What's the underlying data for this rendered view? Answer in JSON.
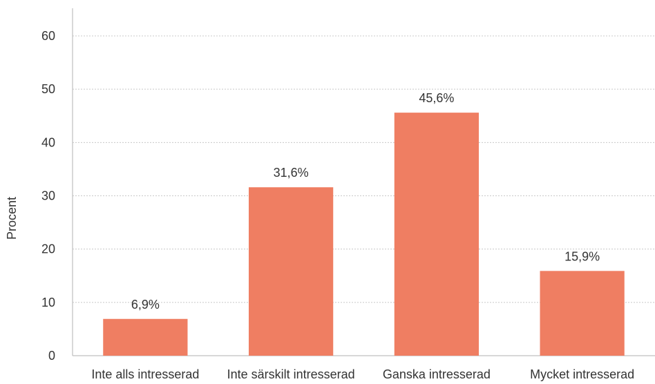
{
  "chart_data": {
    "type": "bar",
    "title": "",
    "xlabel": "",
    "ylabel": "Procent",
    "categories": [
      "Inte alls intresserad",
      "Inte särskilt intresserad",
      "Ganska intresserad",
      "Mycket intresserad"
    ],
    "values": [
      6.9,
      31.6,
      45.6,
      15.9
    ],
    "data_labels": [
      "6,9%",
      "31,6%",
      "45,6%",
      "15,9%"
    ],
    "ylim": [
      0,
      60
    ],
    "yticks": [
      "0",
      "10",
      "20",
      "30",
      "40",
      "50",
      "60"
    ],
    "grid": true,
    "legend": "none",
    "bar_color": "#ef7e62"
  }
}
